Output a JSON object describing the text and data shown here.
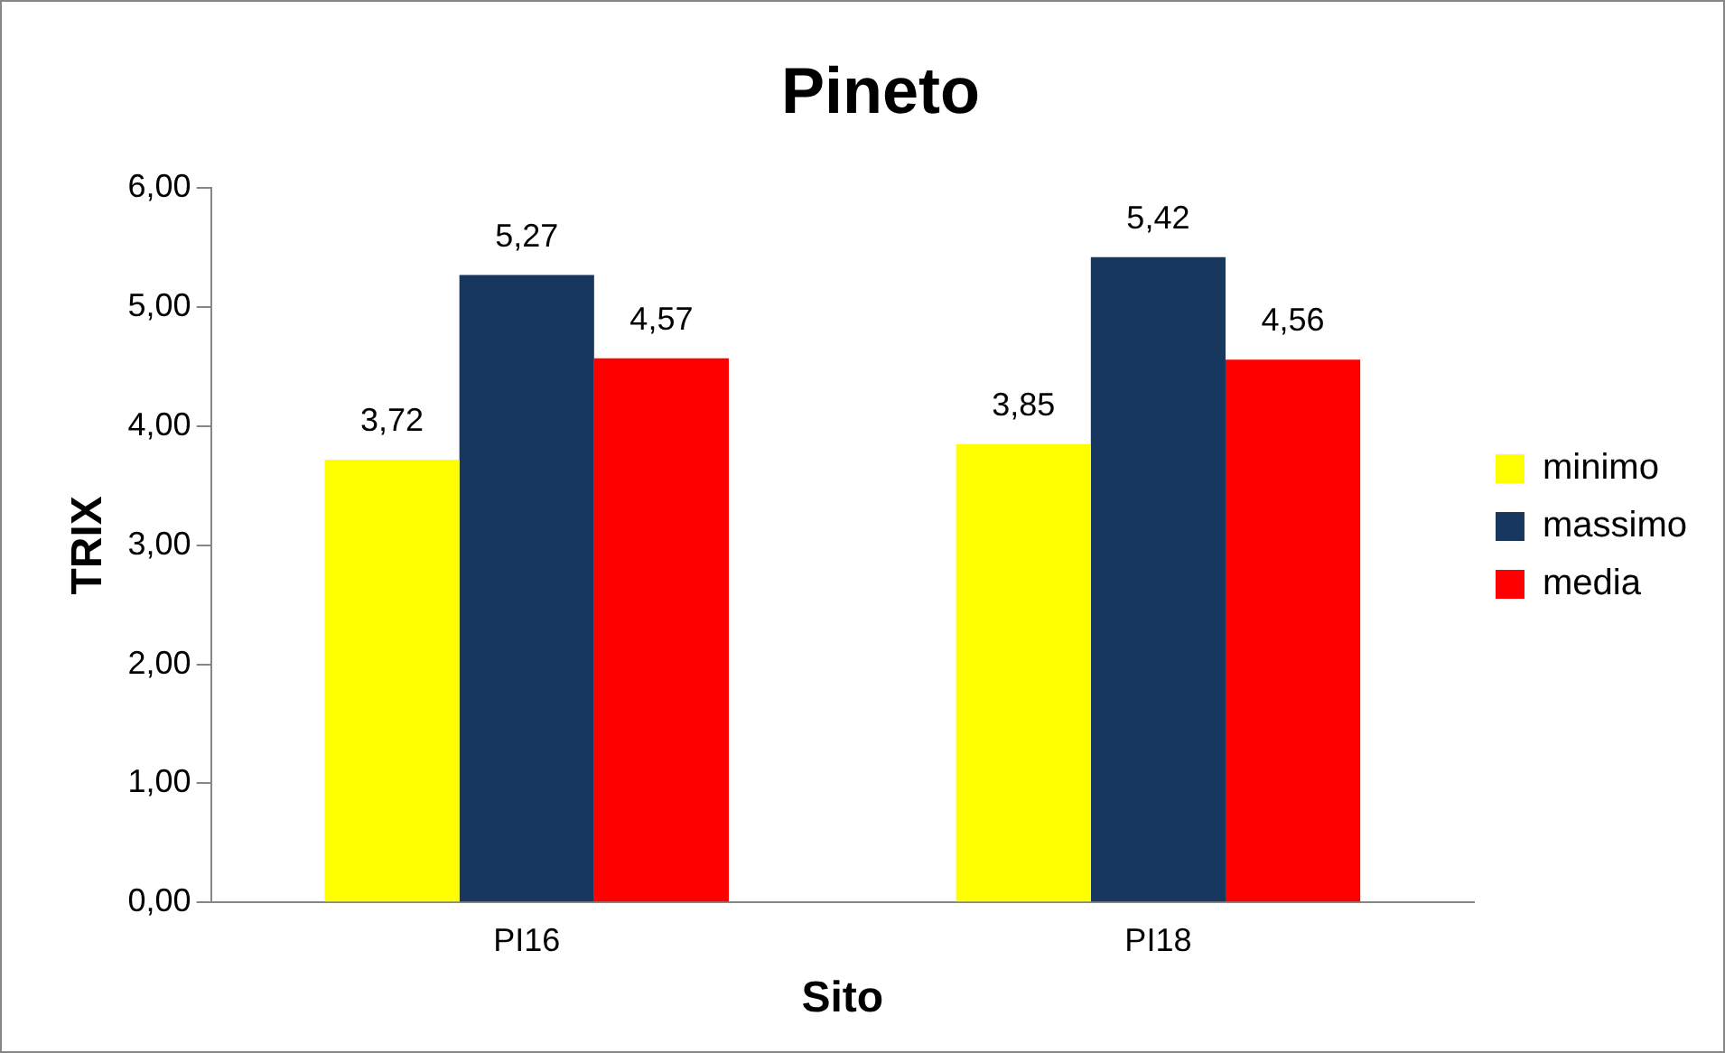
{
  "chart_data": {
    "type": "bar",
    "title": "Pineto",
    "xlabel": "Sito",
    "ylabel": "TRIX",
    "categories": [
      "PI16",
      "PI18"
    ],
    "series": [
      {
        "name": "minimo",
        "color": "#ffff00",
        "values": [
          3.72,
          3.85
        ],
        "value_labels": [
          "3,72",
          "3,85"
        ]
      },
      {
        "name": "massimo",
        "color": "#17375e",
        "values": [
          5.27,
          5.42
        ],
        "value_labels": [
          "5,27",
          "5,42"
        ]
      },
      {
        "name": "media",
        "color": "#ff0000",
        "values": [
          4.57,
          4.56
        ],
        "value_labels": [
          "4,57",
          "4,56"
        ]
      }
    ],
    "ylim": [
      0,
      6
    ],
    "yticks": [
      {
        "value": 0,
        "label": "0,00"
      },
      {
        "value": 1,
        "label": "1,00"
      },
      {
        "value": 2,
        "label": "2,00"
      },
      {
        "value": 3,
        "label": "3,00"
      },
      {
        "value": 4,
        "label": "4,00"
      },
      {
        "value": 5,
        "label": "5,00"
      },
      {
        "value": 6,
        "label": "6,00"
      }
    ],
    "grid": false,
    "legend": "right"
  }
}
